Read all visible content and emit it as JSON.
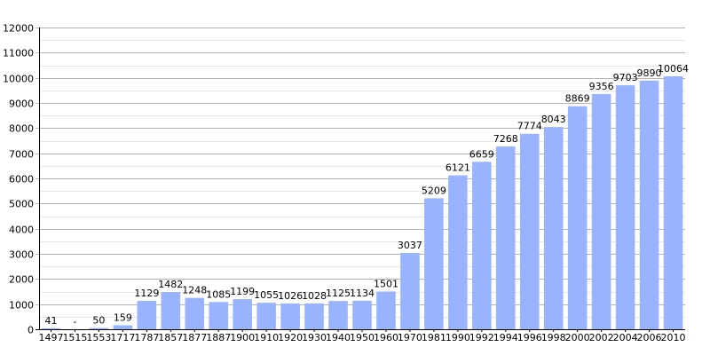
{
  "chart_data": {
    "type": "bar",
    "title": "",
    "xlabel": "",
    "ylabel": "",
    "categories": [
      "1497",
      "1515",
      "1553",
      "1717",
      "1787",
      "1857",
      "1877",
      "1887",
      "1900",
      "1910",
      "1920",
      "1930",
      "1940",
      "1950",
      "1960",
      "1970",
      "1981",
      "1990",
      "1992",
      "1994",
      "1996",
      "1998",
      "2000",
      "2002",
      "2004",
      "2006",
      "2010"
    ],
    "values": [
      41,
      null,
      50,
      159,
      1129,
      1482,
      1248,
      1085,
      1199,
      1055,
      1026,
      1028,
      1125,
      1134,
      1501,
      3037,
      5209,
      6121,
      6659,
      7268,
      7774,
      8043,
      8869,
      9356,
      9703,
      9890,
      10064
    ],
    "labels": [
      "41",
      "-",
      "50",
      "159",
      "1129",
      "1482",
      "1248",
      "1085",
      "1199",
      "1055",
      "1026",
      "1028",
      "1125",
      "1134",
      "1501",
      "3037",
      "5209",
      "6121",
      "6659",
      "7268",
      "7774",
      "8043",
      "8869",
      "9356",
      "9703",
      "9890",
      "10064"
    ],
    "yticks": [
      "0",
      "1000",
      "2000",
      "3000",
      "4000",
      "5000",
      "6000",
      "7000",
      "8000",
      "9000",
      "10000",
      "11000",
      "12000"
    ],
    "ylim": [
      0,
      12000
    ],
    "grid": true,
    "colors": {
      "bar": "#99b3ff",
      "major_grid": "#b3b3b3",
      "minor_grid": "#e6e6e6",
      "axis": "#000000"
    }
  }
}
